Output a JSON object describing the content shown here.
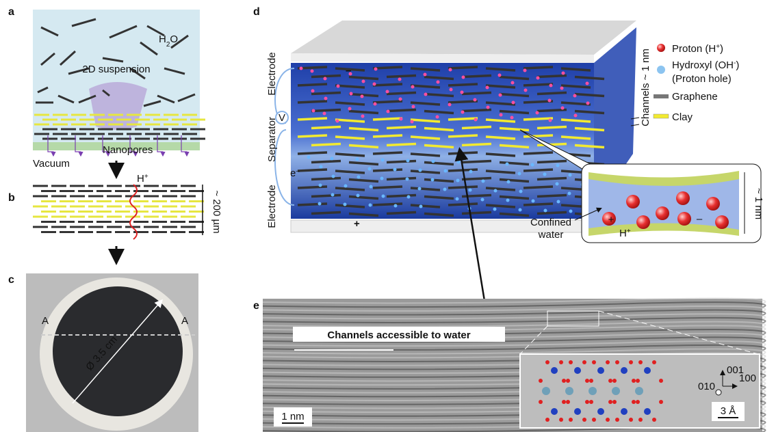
{
  "panels": {
    "a": {
      "label": "a",
      "water": {
        "base": "H",
        "sub": "2",
        "tail": "O"
      },
      "suspension": "2D suspension",
      "nanopores": "Nanopores",
      "vacuum": "Vacuum"
    },
    "b": {
      "label": "b",
      "proton": {
        "base": "H",
        "sup": "+"
      },
      "thickness": "~ 200 µm"
    },
    "c": {
      "label": "c",
      "section_left": "A",
      "section_right": "A",
      "diameter": "Ø 3.5 cm"
    },
    "d": {
      "label": "d",
      "electrode_top": "Electrode",
      "separator": "Separator",
      "electrode_bottom": "Electrode",
      "minus": "–",
      "plus": "+",
      "voltage": "V",
      "electron": {
        "base": "e",
        "sup": "–"
      },
      "channels": "Channels ~ 1 nm",
      "confined_water": [
        "Confined",
        "water"
      ],
      "inset_proton": {
        "base": "H",
        "sup": "+"
      },
      "inset_height": "~ 1 nm",
      "legend": [
        {
          "text": "Proton (H",
          "sup": "+",
          "tail": ")"
        },
        {
          "text": "Hydroxyl (OH",
          "sup": "-",
          "tail": ")",
          "line2": "(Proton hole)"
        },
        {
          "text": "Graphene"
        },
        {
          "text": "Clay"
        }
      ]
    },
    "e": {
      "label": "e",
      "channels": "Channels accessible to water",
      "scale_bar": "1 nm",
      "axes": {
        "up": "001",
        "right": "100",
        "into": "010"
      },
      "inset_scale": "3 Å"
    }
  }
}
